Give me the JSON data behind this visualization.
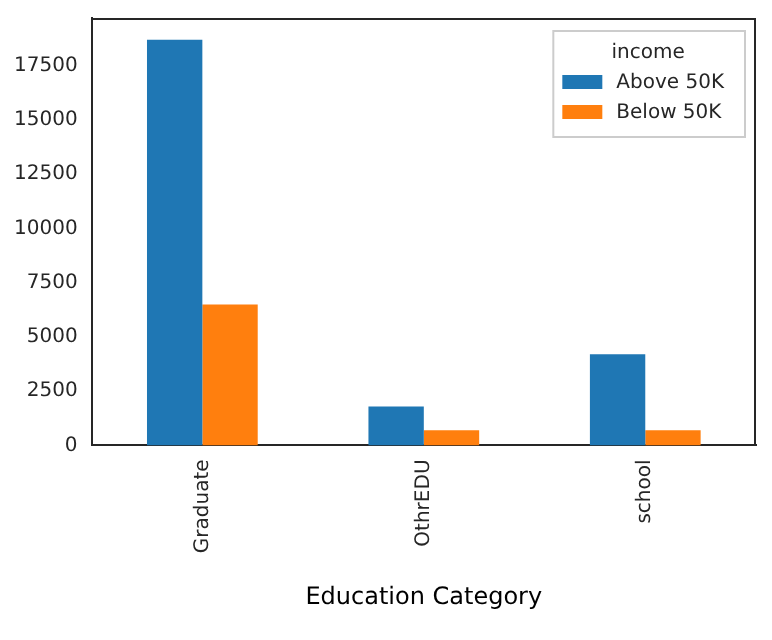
{
  "chart_data": {
    "type": "bar",
    "xlabel": "Education Category",
    "legend_title": "income",
    "legend": "top right",
    "grid": false,
    "categories": [
      "Graduate",
      "OthrEDU",
      "school"
    ],
    "series": [
      {
        "name": "Above 50K",
        "color": "#1f77b4",
        "values": [
          18700,
          1800,
          4200
        ]
      },
      {
        "name": "Below 50K",
        "color": "#ff7f0e",
        "values": [
          6500,
          700,
          700
        ]
      }
    ],
    "ylim": [
      0,
      19700
    ],
    "yticks": [
      0,
      2500,
      5000,
      7500,
      10000,
      12500,
      15000,
      17500
    ]
  }
}
